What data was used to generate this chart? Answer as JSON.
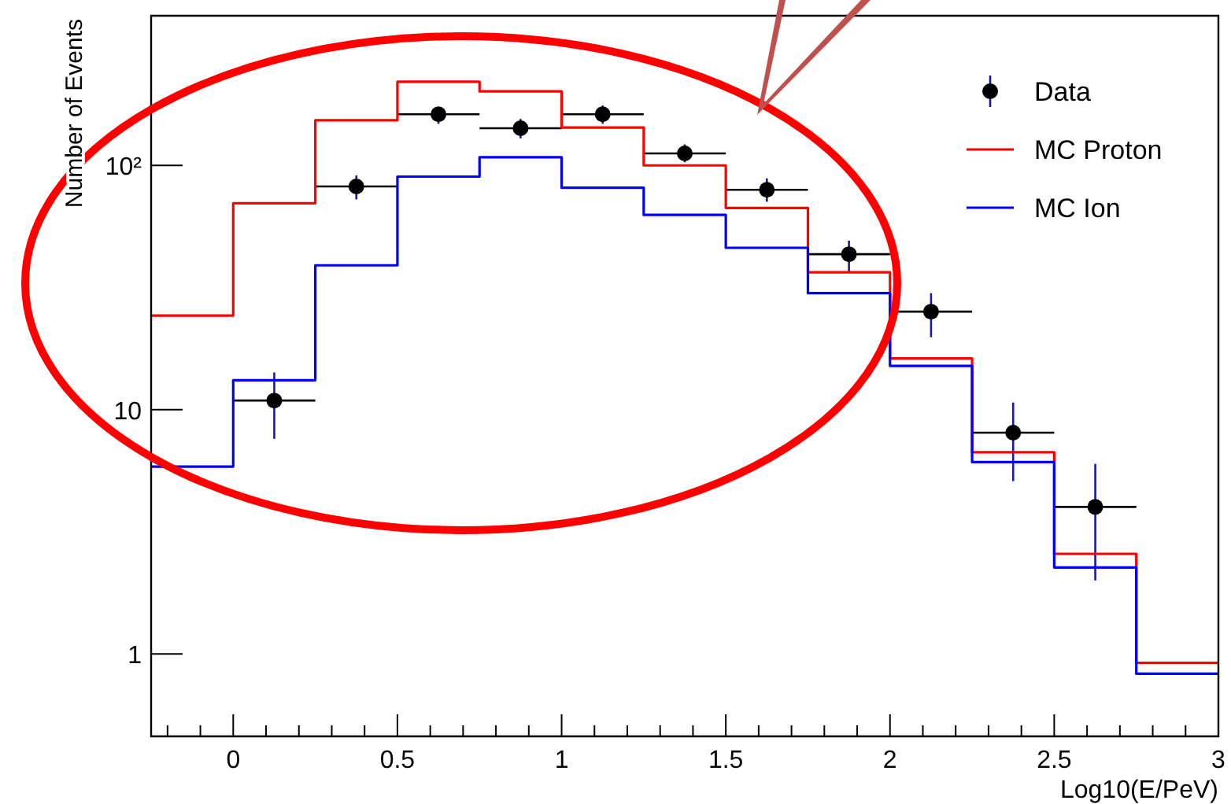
{
  "chart_data": {
    "type": "step",
    "xlabel": "Log10(E/PeV)",
    "ylabel": "Number of Events",
    "xlim": [
      -0.25,
      3
    ],
    "ylim": [
      0.46,
      410
    ],
    "log": true,
    "legend": "top right",
    "xticks": [
      {
        "value": -0.2,
        "label": null
      },
      {
        "value": -0.1,
        "label": null
      },
      0,
      {
        "value": 0.1,
        "label": null
      },
      {
        "value": 0.2,
        "label": null
      },
      {
        "value": 0.3,
        "label": null
      },
      {
        "value": 0.4,
        "label": null
      },
      0.5,
      {
        "value": 0.6,
        "label": null
      },
      {
        "value": 0.7,
        "label": null
      },
      {
        "value": 0.8,
        "label": null
      },
      {
        "value": 0.9,
        "label": null
      },
      1,
      {
        "value": 1.1,
        "label": null
      },
      {
        "value": 1.2,
        "label": null
      },
      {
        "value": 1.3,
        "label": null
      },
      {
        "value": 1.4,
        "label": null
      },
      1.5,
      {
        "value": 1.6,
        "label": null
      },
      {
        "value": 1.7,
        "label": null
      },
      {
        "value": 1.8,
        "label": null
      },
      {
        "value": 1.9,
        "label": null
      },
      2,
      {
        "value": 2.1,
        "label": null
      },
      {
        "value": 2.2,
        "label": null
      },
      {
        "value": 2.3,
        "label": null
      },
      {
        "value": 2.4,
        "label": null
      },
      2.5,
      {
        "value": 2.6,
        "label": null
      },
      {
        "value": 2.7,
        "label": null
      },
      {
        "value": 2.8,
        "label": null
      },
      {
        "value": 2.9,
        "label": null
      },
      3
    ],
    "yticks": [
      1,
      10,
      {
        "value": 100,
        "label": "10²"
      }
    ],
    "series": [
      {
        "name": "Data",
        "type": "scatter",
        "color": "#000000",
        "marker": "circle",
        "x": [
          0.125,
          0.375,
          0.625,
          0.875,
          1.125,
          1.375,
          1.625,
          1.875,
          2.125,
          2.375,
          2.625
        ],
        "values": [
          10.9,
          82,
          162,
          142,
          162,
          112,
          79.5,
          43.3,
          25.2,
          8.05,
          4.0
        ],
        "errors": [
          [
            7.6,
            14.2
          ],
          [
            72.6,
            91
          ],
          [
            148,
            172
          ],
          [
            129,
            155
          ],
          [
            148,
            176
          ],
          [
            103,
            122
          ],
          [
            71,
            88.5
          ],
          [
            36.5,
            49.2
          ],
          [
            19.8,
            30
          ],
          [
            5.1,
            10.7
          ],
          [
            2.0,
            6.0
          ]
        ],
        "xerrors": [
          0.125,
          0.125,
          0.125,
          0.125,
          0.125,
          0.125,
          0.125,
          0.125,
          0.125,
          0.125,
          0.125
        ]
      },
      {
        "name": "MC Proton",
        "type": "step",
        "color": "#ff0000",
        "x": [
          -0.25,
          0,
          0.25,
          0.5,
          0.75,
          1,
          1.25,
          1.5,
          1.75,
          2,
          2.25,
          2.5,
          2.75,
          3
        ],
        "values": [
          24.3,
          70,
          153,
          220,
          201,
          143,
          100,
          67,
          36.5,
          16.2,
          6.7,
          2.57,
          0.92,
          0.92
        ]
      },
      {
        "name": "MC Ion",
        "type": "step",
        "color": "#0000ff",
        "x": [
          -0.25,
          0,
          0.25,
          0.5,
          0.75,
          1,
          1.25,
          1.5,
          1.75,
          2,
          2.25,
          2.5,
          2.75,
          3
        ],
        "values": [
          5.85,
          13.2,
          39,
          90,
          108,
          81,
          62.7,
          46,
          30,
          15.1,
          6.1,
          2.26,
          0.83,
          0.83
        ]
      }
    ]
  }
}
